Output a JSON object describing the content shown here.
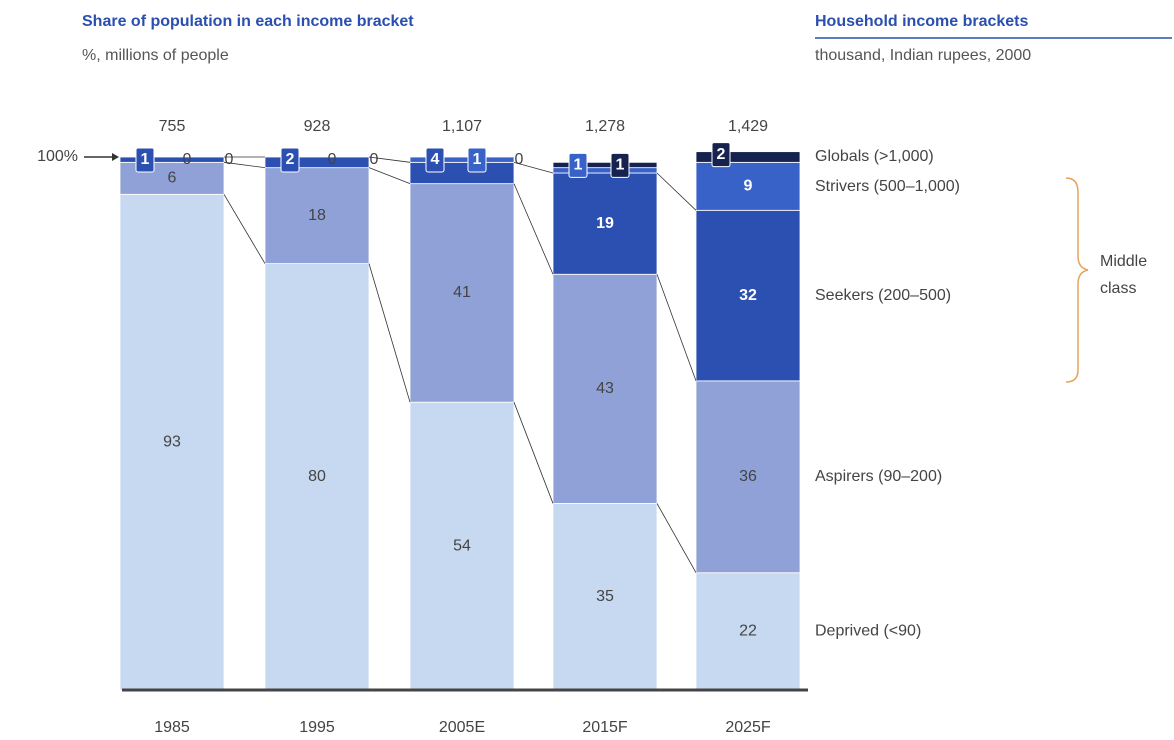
{
  "chart_data": {
    "type": "stacked_bar",
    "title": "Share of population in each income bracket",
    "subtitle": "%, millions of people",
    "legend_title": "Household income brackets",
    "legend_subtitle": "thousand, Indian rupees, 2000",
    "annotation": [
      "Middle",
      "class"
    ],
    "categories": [
      "1985",
      "1995",
      "2005E",
      "2015F",
      "2025F"
    ],
    "totals": {
      "values": [
        755,
        928,
        1107,
        1278,
        1429
      ],
      "value_labels": [
        "755",
        "928",
        "1,107",
        "1,278",
        "1,429"
      ]
    },
    "ylim": [
      0,
      100
    ],
    "yticks": [
      {
        "value": 100,
        "label": "100%"
      }
    ],
    "series": [
      {
        "name": "Deprived (<90)",
        "color": "#c6d9f1",
        "values": [
          93,
          80,
          54,
          35,
          22
        ]
      },
      {
        "name": "Aspirers (90–200)",
        "color": "#8fa1d7",
        "values": [
          6,
          18,
          41,
          43,
          36
        ]
      },
      {
        "name": "Seekers (200–500)",
        "color": "#2b50b2",
        "values": [
          1,
          2,
          4,
          19,
          32
        ]
      },
      {
        "name": "Strivers (500–1,000)",
        "color": "#3862c8",
        "values": [
          0,
          0,
          1,
          1,
          9
        ]
      },
      {
        "name": "Globals (>1,000)",
        "color": "#16234f",
        "values": [
          0,
          0,
          0,
          1,
          2
        ]
      }
    ]
  }
}
